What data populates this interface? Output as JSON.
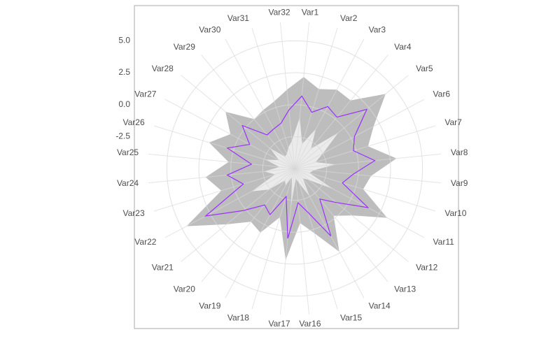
{
  "chart_data": {
    "type": "radar",
    "categories": [
      "Var1",
      "Var2",
      "Var3",
      "Var4",
      "Var5",
      "Var6",
      "Var7",
      "Var8",
      "Var9",
      "Var10",
      "Var11",
      "Var12",
      "Var13",
      "Var14",
      "Var15",
      "Var16",
      "Var17",
      "Var18",
      "Var19",
      "Var20",
      "Var21",
      "Var22",
      "Var23",
      "Var24",
      "Var25",
      "Var26",
      "Var27",
      "Var28",
      "Var29",
      "Var30",
      "Var31",
      "Var32"
    ],
    "series": [
      {
        "kind": "area",
        "color": "#bdbdbd",
        "values": [
          2.2,
          1.5,
          2.0,
          1.9,
          4.2,
          2.0,
          1.0,
          3.0,
          1.0,
          0.6,
          3.2,
          0.8,
          -0.2,
          2.4,
          0.3,
          -0.7,
          2.2,
          -1.0,
          0.7,
          0.4,
          1.9,
          4.6,
          1.0,
          2.0,
          0.2,
          2.0,
          0.7,
          2.0,
          0.0,
          0.2,
          0.5,
          1.2
        ]
      },
      {
        "kind": "area",
        "color": "#ebebeb",
        "values": [
          -1.0,
          -3.0,
          -1.5,
          -3.0,
          -0.6,
          -2.5,
          -3.3,
          -1.8,
          -3.5,
          -3.8,
          -1.6,
          -3.6,
          -4.0,
          -2.5,
          -3.8,
          -4.2,
          -2.0,
          -4.3,
          -3.5,
          -3.8,
          -2.4,
          -1.2,
          -3.4,
          -2.6,
          -3.8,
          -2.6,
          -3.6,
          -2.5,
          -3.8,
          -3.7,
          -3.3,
          -2.8
        ]
      },
      {
        "kind": "line",
        "color": "#9b30ff",
        "values": [
          0.7,
          -0.4,
          0.5,
          0.2,
          2.3,
          0.3,
          -0.2,
          1.3,
          -0.4,
          -1.1,
          1.5,
          -0.8,
          -1.9,
          1.0,
          -1.4,
          -2.3,
          0.5,
          -2.7,
          -0.9,
          -1.3,
          0.2,
          2.9,
          -0.8,
          0.3,
          -1.6,
          0.5,
          -1.0,
          0.3,
          -1.6,
          -1.5,
          -1.3,
          -0.4
        ]
      }
    ],
    "ylim": [
      -5,
      6.5
    ],
    "yticks": [
      -2.5,
      {
        "value": 0,
        "label": "0.0"
      },
      2.5,
      {
        "value": 5,
        "label": "5.0"
      }
    ],
    "grid": true
  }
}
